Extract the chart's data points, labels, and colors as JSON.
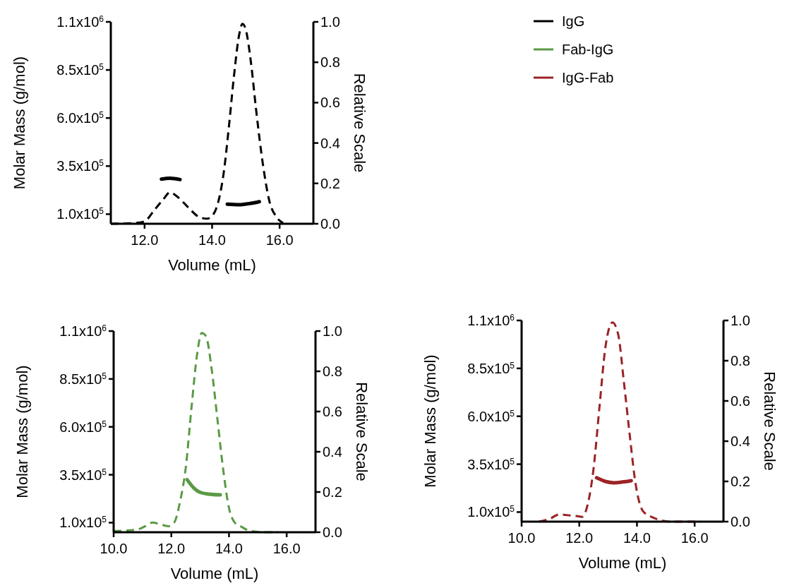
{
  "chart_data": [
    {
      "type": "line",
      "xlabel": "Volume (mL)",
      "ylabel": "Molar Mass (g/mol)",
      "y2label": "Relative Scale",
      "legend": "top right",
      "xlim": [
        11,
        17
      ],
      "xticks": [
        {
          "value": 12,
          "label": "12.0"
        },
        {
          "value": 14,
          "label": "14.0"
        },
        {
          "value": 16,
          "label": "16.0"
        }
      ],
      "ylim": [
        50000,
        1100000
      ],
      "yticks": [
        {
          "value": 100000,
          "label": "1.0x10$^{5}$"
        },
        {
          "value": 350000,
          "label": "3.5x10$^{5}$"
        },
        {
          "value": 600000,
          "label": "6.0x10$^{5}$"
        },
        {
          "value": 850000,
          "label": "8.5x10$^{5}$"
        },
        {
          "value": 1100000,
          "label": "1.1x10$^{6}$"
        }
      ],
      "y2lim": [
        0,
        1
      ],
      "y2ticks": [
        {
          "value": 0,
          "label": "0.0"
        },
        {
          "value": 0.2,
          "label": "0.2"
        },
        {
          "value": 0.4,
          "label": "0.4"
        },
        {
          "value": 0.6,
          "label": "0.6"
        },
        {
          "value": 0.8,
          "label": "0.8"
        },
        {
          "value": 1,
          "label": "1.0"
        }
      ],
      "series": [
        {
          "name": "IgG",
          "color": "#000000",
          "axis": "y",
          "line_style": "solid",
          "x": [
            12.5,
            12.75,
            13.05,
            13.7,
            14.45,
            14.8,
            15.1,
            15.4
          ],
          "values": [
            282000,
            287000,
            280000,
            null,
            152000,
            149000,
            155000,
            165000
          ]
        },
        {
          "color": "#000000",
          "axis": "y2",
          "line_style": "dashed",
          "x": [
            11.0,
            11.8,
            12.0,
            12.3,
            12.55,
            12.75,
            13.0,
            13.3,
            13.6,
            13.85,
            14.05,
            14.2,
            14.35,
            14.5,
            14.65,
            14.8,
            14.9,
            15.0,
            15.15,
            15.3,
            15.5,
            15.7,
            15.9,
            16.1
          ],
          "values": [
            0,
            0.005,
            0.012,
            0.07,
            0.12,
            0.155,
            0.13,
            0.08,
            0.035,
            0.025,
            0.05,
            0.12,
            0.26,
            0.485,
            0.735,
            0.935,
            0.99,
            0.96,
            0.8,
            0.57,
            0.3,
            0.11,
            0.035,
            0.004
          ]
        }
      ]
    },
    {
      "type": "line",
      "xlabel": "Volume (mL)",
      "ylabel": "Molar Mass (g/mol)",
      "y2label": "Relative Scale",
      "legend": "top right",
      "xlim": [
        10,
        17
      ],
      "xticks": [
        {
          "value": 10,
          "label": "10.0"
        },
        {
          "value": 12,
          "label": "12.0"
        },
        {
          "value": 14,
          "label": "14.0"
        },
        {
          "value": 16,
          "label": "16.0"
        }
      ],
      "ylim": [
        50000,
        1100000
      ],
      "yticks": [
        {
          "value": 100000,
          "label": "1.0x10$^{5}$"
        },
        {
          "value": 350000,
          "label": "3.5x10$^{5}$"
        },
        {
          "value": 600000,
          "label": "6.0x10$^{5}$"
        },
        {
          "value": 850000,
          "label": "8.5x10$^{5}$"
        },
        {
          "value": 1100000,
          "label": "1.1x10$^{6}$"
        }
      ],
      "y2lim": [
        0,
        1
      ],
      "y2ticks": [
        {
          "value": 0,
          "label": "0.0"
        },
        {
          "value": 0.2,
          "label": "0.2"
        },
        {
          "value": 0.4,
          "label": "0.4"
        },
        {
          "value": 0.6,
          "label": "0.6"
        },
        {
          "value": 0.8,
          "label": "0.8"
        },
        {
          "value": 1,
          "label": "1.0"
        }
      ],
      "series": [
        {
          "name": "Fab-IgG",
          "color": "#5a9a45",
          "axis": "y",
          "line_style": "solid",
          "x": [
            12.55,
            12.8,
            13.0,
            13.3,
            13.7
          ],
          "values": [
            324000,
            278000,
            258000,
            249000,
            245000
          ]
        },
        {
          "color": "#5a9a45",
          "axis": "y2",
          "line_style": "dashed",
          "x": [
            10.0,
            10.8,
            11.1,
            11.35,
            11.6,
            11.9,
            12.1,
            12.3,
            12.5,
            12.7,
            12.9,
            13.05,
            13.2,
            13.4,
            13.6,
            13.8,
            14.0,
            14.2,
            14.4,
            14.7,
            15.2,
            15.7
          ],
          "values": [
            0.006,
            0.013,
            0.03,
            0.048,
            0.04,
            0.03,
            0.048,
            0.15,
            0.32,
            0.62,
            0.89,
            0.99,
            0.975,
            0.81,
            0.56,
            0.31,
            0.12,
            0.048,
            0.03,
            0.008,
            0,
            0
          ]
        }
      ]
    },
    {
      "type": "line",
      "xlabel": "Volume (mL)",
      "ylabel": "Molar Mass (g/mol)",
      "y2label": "Relative Scale",
      "legend": "top left",
      "xlim": [
        10,
        17
      ],
      "xticks": [
        {
          "value": 10,
          "label": "10.0"
        },
        {
          "value": 12,
          "label": "12.0"
        },
        {
          "value": 14,
          "label": "14.0"
        },
        {
          "value": 16,
          "label": "16.0"
        }
      ],
      "ylim": [
        50000,
        1100000
      ],
      "yticks": [
        {
          "value": 100000,
          "label": "1.0x10$^{5}$"
        },
        {
          "value": 350000,
          "label": "3.5x10$^{5}$"
        },
        {
          "value": 600000,
          "label": "6.0x10$^{5}$"
        },
        {
          "value": 850000,
          "label": "8.5x10$^{5}$"
        },
        {
          "value": 1100000,
          "label": "1.1x10$^{6}$"
        }
      ],
      "y2lim": [
        0,
        1
      ],
      "y2ticks": [
        {
          "value": 0,
          "label": "0.0"
        },
        {
          "value": 0.2,
          "label": "0.2"
        },
        {
          "value": 0.4,
          "label": "0.4"
        },
        {
          "value": 0.6,
          "label": "0.6"
        },
        {
          "value": 0.8,
          "label": "0.8"
        },
        {
          "value": 1,
          "label": "1.0"
        }
      ],
      "series": [
        {
          "name": "IgG-Fab",
          "color": "#9b2226",
          "axis": "y",
          "line_style": "solid",
          "x": [
            12.6,
            12.9,
            13.2,
            13.5,
            13.8
          ],
          "values": [
            279000,
            260000,
            253000,
            257000,
            264000
          ]
        },
        {
          "color": "#9b2226",
          "axis": "y2",
          "line_style": "dashed",
          "x": [
            10.6,
            11.0,
            11.3,
            11.6,
            11.9,
            12.1,
            12.3,
            12.5,
            12.7,
            12.9,
            13.15,
            13.35,
            13.55,
            13.75,
            13.95,
            14.2,
            14.5,
            14.8,
            15.2,
            16.2
          ],
          "values": [
            0,
            0.016,
            0.036,
            0.032,
            0.028,
            0.024,
            0.09,
            0.27,
            0.57,
            0.86,
            0.99,
            0.93,
            0.69,
            0.43,
            0.19,
            0.054,
            0.024,
            0.008,
            0,
            0
          ]
        }
      ]
    }
  ]
}
